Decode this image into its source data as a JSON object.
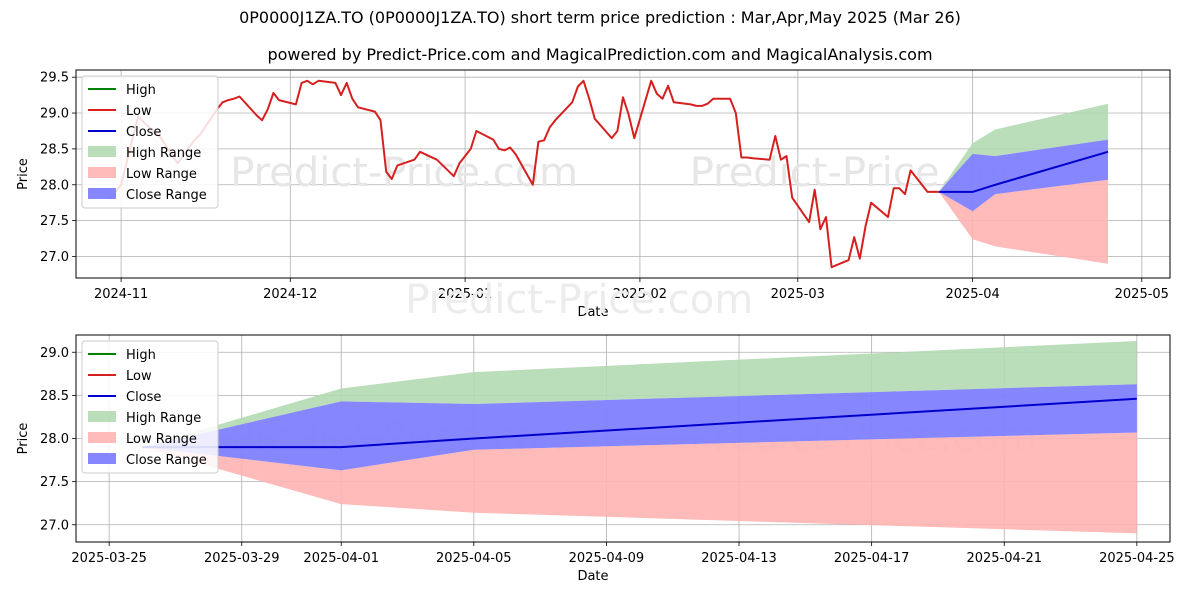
{
  "title_line1": "0P0000J1ZA.TO (0P0000J1ZA.TO) short term price prediction : Mar,Apr,May 2025 (Mar 26)",
  "title_line2": "powered by Predict-Price.com and MagicalPrediction.com and MagicalAnalysis.com",
  "watermark": "Predict-Price.com",
  "colors": {
    "high": "#008000",
    "low": "#d62020",
    "close": "#0000cc",
    "high_range": "#b3d9b3",
    "low_range": "#ffb3b3",
    "close_range": "#7f7fff"
  },
  "chart_data": [
    {
      "type": "line",
      "xlabel": "Date",
      "ylabel": "Price",
      "x_ticks": [
        "2024-11",
        "2024-12",
        "2025-01",
        "2025-02",
        "2025-03",
        "2025-04",
        "2025-05"
      ],
      "y_ticks": [
        "27.0",
        "27.5",
        "28.0",
        "28.5",
        "29.0",
        "29.5"
      ],
      "ylim": [
        26.7,
        29.6
      ],
      "grid": true,
      "legend_position": "top-left",
      "legend": [
        "High",
        "Low",
        "Close",
        "High Range",
        "Low Range",
        "Close Range"
      ],
      "series": [
        {
          "name": "Low",
          "x": [
            "2024-10-30",
            "2024-11-01",
            "2024-11-04",
            "2024-11-06",
            "2024-11-07",
            "2024-11-08",
            "2024-11-11",
            "2024-11-12",
            "2024-11-13",
            "2024-11-14",
            "2024-11-15",
            "2024-11-18",
            "2024-11-19",
            "2024-11-20",
            "2024-11-21",
            "2024-11-22",
            "2024-11-25",
            "2024-11-26",
            "2024-11-27",
            "2024-11-28",
            "2024-11-29",
            "2024-12-02",
            "2024-12-03",
            "2024-12-04",
            "2024-12-05",
            "2024-12-06",
            "2024-12-09",
            "2024-12-10",
            "2024-12-11",
            "2024-12-12",
            "2024-12-13",
            "2024-12-16",
            "2024-12-17",
            "2024-12-18",
            "2024-12-19",
            "2024-12-20",
            "2024-12-23",
            "2024-12-24",
            "2024-12-27",
            "2024-12-30",
            "2024-12-31",
            "2025-01-02",
            "2025-01-03",
            "2025-01-06",
            "2025-01-07",
            "2025-01-08",
            "2025-01-09",
            "2025-01-10",
            "2025-01-13",
            "2025-01-14",
            "2025-01-15",
            "2025-01-16",
            "2025-01-17",
            "2025-01-20",
            "2025-01-21",
            "2025-01-22",
            "2025-01-23",
            "2025-01-24",
            "2025-01-27",
            "2025-01-28",
            "2025-01-29",
            "2025-01-30",
            "2025-01-31",
            "2025-02-03",
            "2025-02-04",
            "2025-02-05",
            "2025-02-06",
            "2025-02-07",
            "2025-02-10",
            "2025-02-11",
            "2025-02-12",
            "2025-02-13",
            "2025-02-14",
            "2025-02-17",
            "2025-02-18",
            "2025-02-19",
            "2025-02-20",
            "2025-02-21",
            "2025-02-24",
            "2025-02-25",
            "2025-02-26",
            "2025-02-27",
            "2025-02-28",
            "2025-03-03",
            "2025-03-04",
            "2025-03-05",
            "2025-03-06",
            "2025-03-07",
            "2025-03-10",
            "2025-03-11",
            "2025-03-12",
            "2025-03-13",
            "2025-03-14",
            "2025-03-17",
            "2025-03-18",
            "2025-03-19",
            "2025-03-20",
            "2025-03-21",
            "2025-03-24",
            "2025-03-25",
            "2025-03-26"
          ],
          "values": [
            27.8,
            28.0,
            28.95,
            28.8,
            28.72,
            28.66,
            28.3,
            28.4,
            28.52,
            28.62,
            28.7,
            29.05,
            29.15,
            29.18,
            29.2,
            29.23,
            28.97,
            28.9,
            29.05,
            29.28,
            29.18,
            29.12,
            29.42,
            29.45,
            29.4,
            29.45,
            29.42,
            29.25,
            29.42,
            29.2,
            29.08,
            29.02,
            28.9,
            28.18,
            28.08,
            28.27,
            28.35,
            28.46,
            28.35,
            28.12,
            28.3,
            28.5,
            28.75,
            28.63,
            28.5,
            28.48,
            28.52,
            28.42,
            28.0,
            28.6,
            28.62,
            28.8,
            28.9,
            29.15,
            29.37,
            29.45,
            29.2,
            28.92,
            28.65,
            28.75,
            29.22,
            28.98,
            28.65,
            29.45,
            29.27,
            29.2,
            29.38,
            29.15,
            29.12,
            29.1,
            29.1,
            29.13,
            29.2,
            29.2,
            29.0,
            28.38,
            28.38,
            28.37,
            28.35,
            28.68,
            28.35,
            28.4,
            27.82,
            27.48,
            27.93,
            27.38,
            27.55,
            26.85,
            26.95,
            27.27,
            26.97,
            27.42,
            27.75,
            27.55,
            27.95,
            27.95,
            27.87,
            28.2,
            27.9,
            27.9,
            27.9
          ]
        },
        {
          "name": "Close",
          "x": [
            "2025-03-26",
            "2025-04-01",
            "2025-04-05",
            "2025-04-25"
          ],
          "values": [
            27.9,
            27.9,
            28.0,
            28.46
          ]
        }
      ],
      "ranges": [
        {
          "name": "High Range",
          "x": [
            "2025-03-26",
            "2025-04-01",
            "2025-04-05",
            "2025-04-25"
          ],
          "lower": [
            27.9,
            28.43,
            28.4,
            28.63
          ],
          "upper": [
            27.9,
            28.58,
            28.77,
            29.13
          ]
        },
        {
          "name": "Low Range",
          "x": [
            "2025-03-26",
            "2025-04-01",
            "2025-04-05",
            "2025-04-25"
          ],
          "lower": [
            27.9,
            27.24,
            27.14,
            26.9
          ],
          "upper": [
            27.9,
            27.63,
            27.87,
            28.07
          ]
        },
        {
          "name": "Close Range",
          "x": [
            "2025-03-26",
            "2025-04-01",
            "2025-04-05",
            "2025-04-25"
          ],
          "lower": [
            27.9,
            27.63,
            27.87,
            28.07
          ],
          "upper": [
            27.9,
            28.43,
            28.4,
            28.63
          ]
        }
      ]
    },
    {
      "type": "line",
      "xlabel": "Date",
      "ylabel": "Price",
      "x_ticks": [
        "2025-03-25",
        "2025-03-29",
        "2025-04-01",
        "2025-04-05",
        "2025-04-09",
        "2025-04-13",
        "2025-04-17",
        "2025-04-21",
        "2025-04-25"
      ],
      "y_ticks": [
        "27.0",
        "27.5",
        "28.0",
        "28.5",
        "29.0"
      ],
      "ylim": [
        26.8,
        29.2
      ],
      "grid": true,
      "legend_position": "top-left",
      "legend": [
        "High",
        "Low",
        "Close",
        "High Range",
        "Low Range",
        "Close Range"
      ],
      "series": [
        {
          "name": "Low",
          "x": [
            "2025-03-26",
            "2025-03-27"
          ],
          "values": [
            27.9,
            27.9
          ]
        },
        {
          "name": "Close",
          "x": [
            "2025-03-26",
            "2025-04-01",
            "2025-04-05",
            "2025-04-25"
          ],
          "values": [
            27.9,
            27.9,
            28.0,
            28.46
          ]
        }
      ],
      "ranges": [
        {
          "name": "High Range",
          "x": [
            "2025-03-26",
            "2025-04-01",
            "2025-04-05",
            "2025-04-25"
          ],
          "lower": [
            27.9,
            28.43,
            28.4,
            28.63
          ],
          "upper": [
            27.9,
            28.58,
            28.77,
            29.13
          ]
        },
        {
          "name": "Low Range",
          "x": [
            "2025-03-26",
            "2025-04-01",
            "2025-04-05",
            "2025-04-25"
          ],
          "lower": [
            27.9,
            27.24,
            27.14,
            26.9
          ],
          "upper": [
            27.9,
            27.63,
            27.87,
            28.07
          ]
        },
        {
          "name": "Close Range",
          "x": [
            "2025-03-26",
            "2025-04-01",
            "2025-04-05",
            "2025-04-25"
          ],
          "lower": [
            27.9,
            27.63,
            27.87,
            28.07
          ],
          "upper": [
            27.9,
            28.43,
            28.4,
            28.63
          ]
        }
      ]
    }
  ]
}
